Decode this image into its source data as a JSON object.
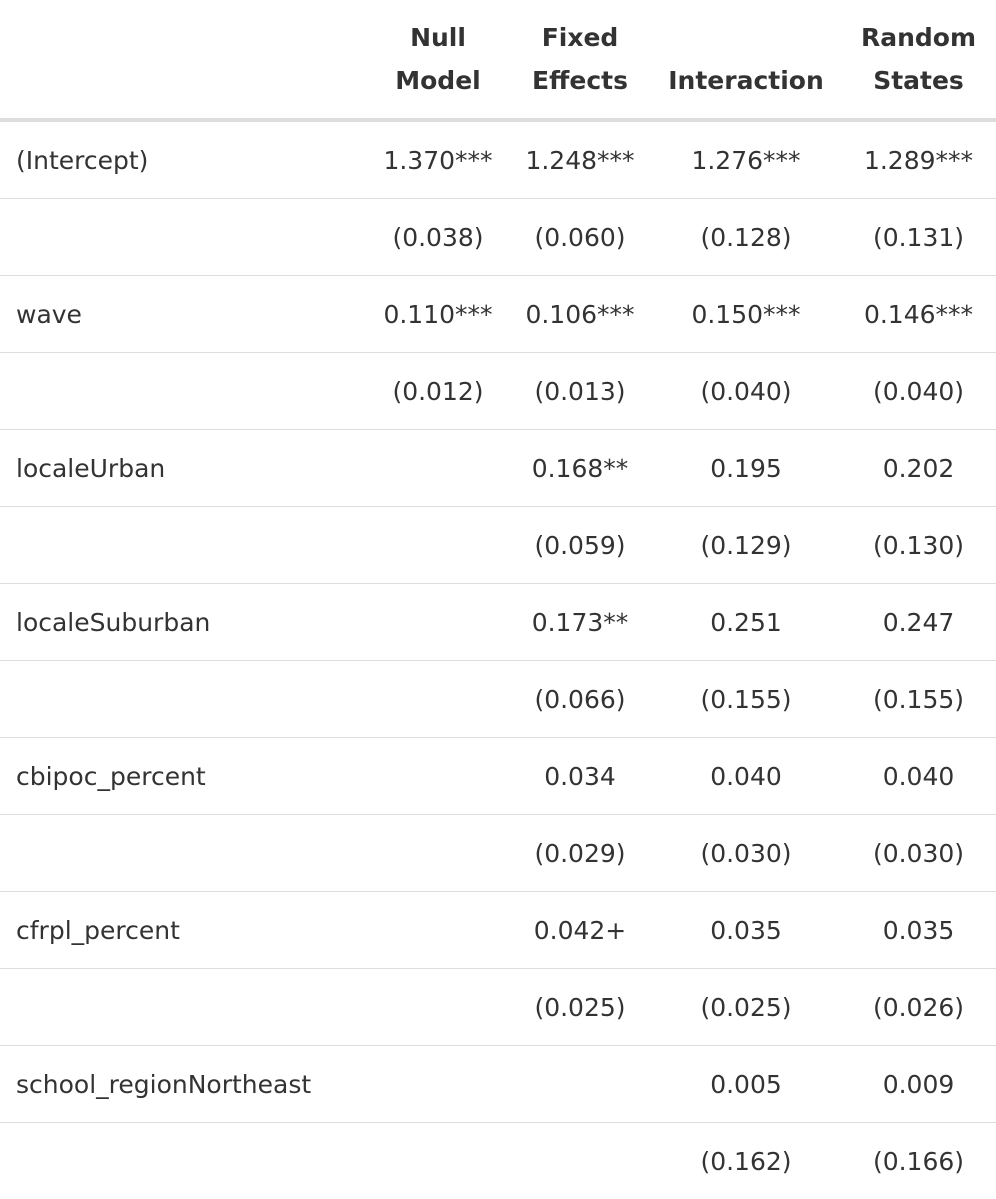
{
  "columns": [
    {
      "line1": "",
      "line2": ""
    },
    {
      "line1": "Null",
      "line2": "Model"
    },
    {
      "line1": "Fixed",
      "line2": "Effects"
    },
    {
      "line1": "",
      "line2": "Interaction"
    },
    {
      "line1": "Random",
      "line2": "States"
    }
  ],
  "rows": [
    {
      "label": "(Intercept)",
      "null": "1.370***",
      "fixed": "1.248***",
      "interaction": "1.276***",
      "random": "1.289***"
    },
    {
      "label": "",
      "null": "(0.038)",
      "fixed": "(0.060)",
      "interaction": "(0.128)",
      "random": "(0.131)"
    },
    {
      "label": "wave",
      "null": "0.110***",
      "fixed": "0.106***",
      "interaction": "0.150***",
      "random": "0.146***"
    },
    {
      "label": "",
      "null": "(0.012)",
      "fixed": "(0.013)",
      "interaction": "(0.040)",
      "random": "(0.040)"
    },
    {
      "label": "localeUrban",
      "null": "",
      "fixed": "0.168**",
      "interaction": "0.195",
      "random": "0.202"
    },
    {
      "label": "",
      "null": "",
      "fixed": "(0.059)",
      "interaction": "(0.129)",
      "random": "(0.130)"
    },
    {
      "label": "localeSuburban",
      "null": "",
      "fixed": "0.173**",
      "interaction": "0.251",
      "random": "0.247"
    },
    {
      "label": "",
      "null": "",
      "fixed": "(0.066)",
      "interaction": "(0.155)",
      "random": "(0.155)"
    },
    {
      "label": "cbipoc_percent",
      "null": "",
      "fixed": "0.034",
      "interaction": "0.040",
      "random": "0.040"
    },
    {
      "label": "",
      "null": "",
      "fixed": "(0.029)",
      "interaction": "(0.030)",
      "random": "(0.030)"
    },
    {
      "label": "cfrpl_percent",
      "null": "",
      "fixed": "0.042+",
      "interaction": "0.035",
      "random": "0.035"
    },
    {
      "label": "",
      "null": "",
      "fixed": "(0.025)",
      "interaction": "(0.025)",
      "random": "(0.026)"
    },
    {
      "label": "school_regionNortheast",
      "null": "",
      "fixed": "",
      "interaction": "0.005",
      "random": "0.009"
    },
    {
      "label": "",
      "null": "",
      "fixed": "",
      "interaction": "(0.162)",
      "random": "(0.166)"
    }
  ]
}
